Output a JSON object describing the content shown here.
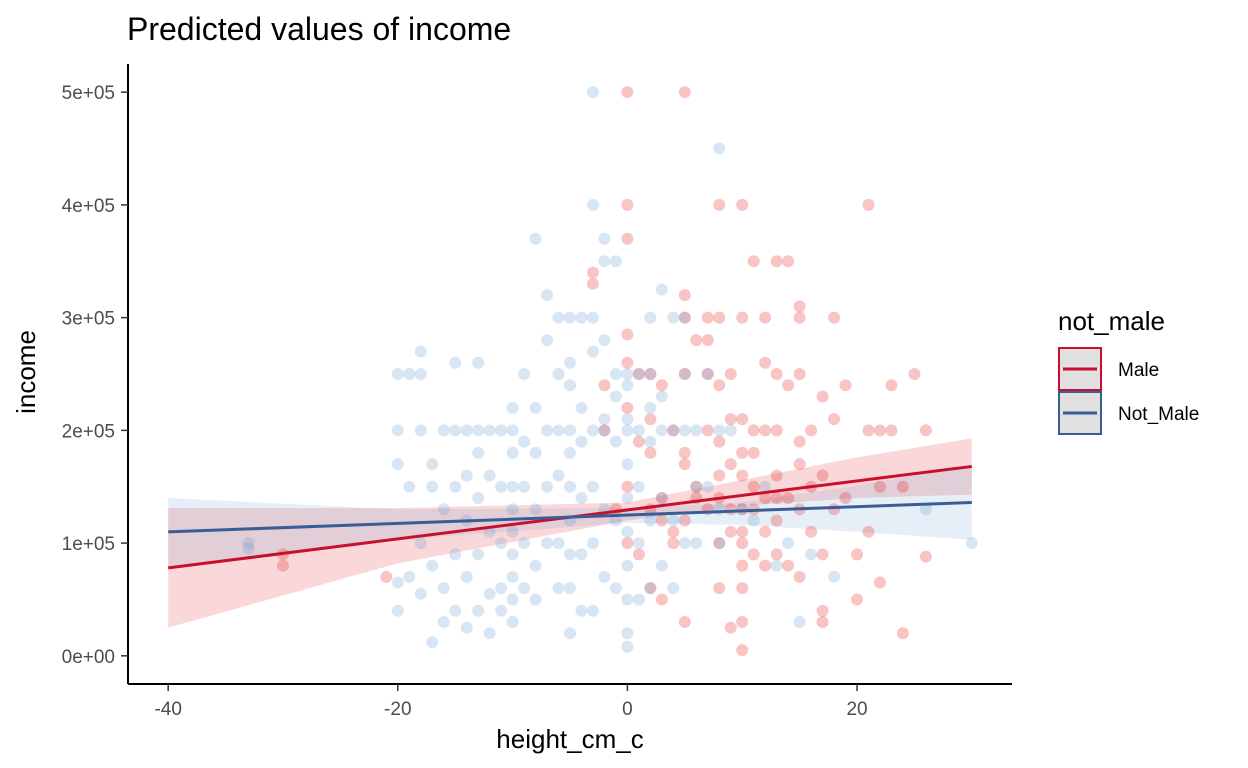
{
  "chart_data": {
    "type": "scatter",
    "title": "Predicted values of income",
    "xlabel": "height_cm_c",
    "ylabel": "income",
    "xlim": [
      -43.5,
      33.5
    ],
    "ylim": [
      -25000,
      525000
    ],
    "x_ticks": [
      -40,
      -20,
      0,
      20
    ],
    "x_tick_labels": [
      "-40",
      "-20",
      "0",
      "20"
    ],
    "y_ticks": [
      0,
      100000,
      200000,
      300000,
      400000,
      500000
    ],
    "y_tick_labels": [
      "0e+00",
      "1e+05",
      "2e+05",
      "3e+05",
      "4e+05",
      "5e+05"
    ],
    "grid": false,
    "legend": {
      "title": "not_male",
      "placement": "right"
    },
    "series": [
      {
        "name": "Male",
        "color": "#e41a1c",
        "line_color": "#c8102e",
        "fit": {
          "x": [
            -40,
            30
          ],
          "y": [
            78000,
            168000
          ]
        },
        "ci_band": {
          "x": [
            -40,
            -20,
            0,
            10,
            20,
            30
          ],
          "lower": [
            25000,
            82000,
            120000,
            133000,
            140000,
            143000
          ],
          "upper": [
            131000,
            131000,
            136000,
            156000,
            176000,
            193000
          ]
        },
        "points": {
          "x": [
            -30,
            -30,
            -21,
            -3,
            -3,
            -2,
            -2,
            0,
            0,
            0,
            0,
            0,
            0,
            0,
            0,
            1,
            1,
            2,
            2,
            2,
            2,
            3,
            3,
            3,
            4,
            4,
            5,
            5,
            5,
            5,
            5,
            5,
            5,
            6,
            6,
            7,
            7,
            7,
            7,
            8,
            8,
            8,
            8,
            8,
            8,
            8,
            9,
            9,
            9,
            9,
            10,
            10,
            10,
            10,
            10,
            10,
            10,
            10,
            10,
            10,
            10,
            10,
            11,
            11,
            11,
            11,
            11,
            12,
            12,
            12,
            12,
            12,
            13,
            13,
            13,
            13,
            13,
            13,
            14,
            14,
            14,
            14,
            15,
            15,
            15,
            15,
            15,
            15,
            16,
            16,
            16,
            17,
            17,
            17,
            17,
            18,
            18,
            18,
            19,
            19,
            20,
            20,
            21,
            21,
            21,
            22,
            22,
            22,
            23,
            23,
            24,
            24,
            25,
            26,
            26,
            5,
            3,
            8,
            9,
            12,
            15,
            17,
            2,
            6,
            -1,
            1,
            7,
            9,
            11,
            13,
            4
          ],
          "y": [
            90000,
            80000,
            70000,
            340000,
            330000,
            240000,
            200000,
            500000,
            400000,
            370000,
            285000,
            260000,
            220000,
            150000,
            100000,
            250000,
            190000,
            250000,
            180000,
            130000,
            60000,
            240000,
            140000,
            50000,
            200000,
            100000,
            500000,
            320000,
            300000,
            250000,
            180000,
            120000,
            30000,
            280000,
            150000,
            300000,
            280000,
            200000,
            130000,
            400000,
            300000,
            240000,
            190000,
            140000,
            100000,
            60000,
            250000,
            170000,
            110000,
            25000,
            400000,
            300000,
            210000,
            180000,
            160000,
            130000,
            110000,
            100000,
            80000,
            60000,
            30000,
            5000,
            350000,
            200000,
            150000,
            130000,
            90000,
            300000,
            260000,
            200000,
            140000,
            80000,
            350000,
            250000,
            200000,
            160000,
            120000,
            90000,
            350000,
            240000,
            140000,
            80000,
            310000,
            300000,
            250000,
            190000,
            130000,
            70000,
            200000,
            150000,
            110000,
            230000,
            160000,
            90000,
            30000,
            300000,
            210000,
            130000,
            240000,
            140000,
            90000,
            50000,
            400000,
            200000,
            110000,
            200000,
            150000,
            65000,
            240000,
            200000,
            150000,
            20000,
            250000,
            200000,
            88000,
            170000,
            120000,
            160000,
            130000,
            110000,
            170000,
            40000,
            210000,
            140000,
            130000,
            90000,
            250000,
            210000,
            180000,
            140000,
            110000
          ]
        }
      },
      {
        "name": "Not_Male",
        "color": "#6a9ed1",
        "line_color": "#3b5d95",
        "fit": {
          "x": [
            -40,
            30
          ],
          "y": [
            110000,
            136000
          ]
        },
        "ci_band": {
          "x": [
            -40,
            -20,
            0,
            10,
            20,
            30
          ],
          "lower": [
            80000,
            103000,
            118000,
            116000,
            110000,
            103000
          ],
          "upper": [
            140000,
            130000,
            131000,
            136000,
            151000,
            169000
          ]
        },
        "points": {
          "x": [
            -33,
            -33,
            -20,
            -20,
            -20,
            -20,
            -20,
            -19,
            -19,
            -19,
            -18,
            -18,
            -18,
            -18,
            -18,
            -17,
            -17,
            -17,
            -17,
            -16,
            -16,
            -16,
            -16,
            -15,
            -15,
            -15,
            -15,
            -15,
            -14,
            -14,
            -14,
            -14,
            -14,
            -13,
            -13,
            -13,
            -13,
            -13,
            -13,
            -12,
            -12,
            -12,
            -12,
            -12,
            -11,
            -11,
            -11,
            -11,
            -11,
            -10,
            -10,
            -10,
            -10,
            -10,
            -10,
            -10,
            -10,
            -10,
            -10,
            -9,
            -9,
            -9,
            -9,
            -9,
            -8,
            -8,
            -8,
            -8,
            -8,
            -8,
            -7,
            -7,
            -7,
            -7,
            -7,
            -6,
            -6,
            -6,
            -6,
            -6,
            -6,
            -5,
            -5,
            -5,
            -5,
            -5,
            -5,
            -5,
            -5,
            -5,
            -5,
            -4,
            -4,
            -4,
            -4,
            -4,
            -4,
            -3,
            -3,
            -3,
            -3,
            -3,
            -3,
            -3,
            -2,
            -2,
            -2,
            -2,
            -2,
            -2,
            -1,
            -1,
            -1,
            -1,
            -1,
            0,
            0,
            0,
            0,
            0,
            0,
            0,
            0,
            0,
            0,
            1,
            1,
            1,
            1,
            1,
            2,
            2,
            2,
            2,
            2,
            3,
            3,
            3,
            3,
            4,
            4,
            4,
            4,
            5,
            5,
            5,
            6,
            6,
            6,
            7,
            7,
            8,
            8,
            8,
            9,
            10,
            11,
            12,
            13,
            14,
            15,
            16,
            18,
            26,
            30,
            -3,
            -2,
            -1,
            0,
            3,
            8,
            5,
            2
          ],
          "y": [
            100000,
            95000,
            250000,
            200000,
            170000,
            65000,
            40000,
            250000,
            150000,
            70000,
            270000,
            250000,
            200000,
            100000,
            55000,
            170000,
            150000,
            80000,
            12000,
            200000,
            130000,
            60000,
            30000,
            260000,
            200000,
            150000,
            90000,
            40000,
            200000,
            160000,
            120000,
            70000,
            25000,
            260000,
            200000,
            180000,
            140000,
            90000,
            40000,
            200000,
            160000,
            110000,
            55000,
            20000,
            200000,
            150000,
            100000,
            60000,
            40000,
            220000,
            200000,
            180000,
            150000,
            130000,
            110000,
            90000,
            70000,
            50000,
            30000,
            250000,
            190000,
            150000,
            100000,
            60000,
            370000,
            220000,
            180000,
            130000,
            80000,
            50000,
            320000,
            280000,
            200000,
            150000,
            100000,
            300000,
            250000,
            200000,
            160000,
            100000,
            60000,
            300000,
            260000,
            240000,
            200000,
            180000,
            150000,
            120000,
            90000,
            60000,
            20000,
            300000,
            220000,
            190000,
            140000,
            90000,
            40000,
            500000,
            400000,
            300000,
            200000,
            150000,
            100000,
            40000,
            370000,
            350000,
            280000,
            200000,
            130000,
            70000,
            350000,
            250000,
            190000,
            120000,
            60000,
            250000,
            240000,
            200000,
            170000,
            140000,
            110000,
            80000,
            50000,
            20000,
            8000,
            250000,
            200000,
            150000,
            100000,
            50000,
            300000,
            250000,
            190000,
            120000,
            60000,
            325000,
            200000,
            140000,
            80000,
            300000,
            200000,
            120000,
            60000,
            300000,
            200000,
            100000,
            200000,
            150000,
            100000,
            250000,
            150000,
            450000,
            200000,
            100000,
            200000,
            130000,
            120000,
            150000,
            80000,
            100000,
            30000,
            90000,
            70000,
            130000,
            100000,
            270000,
            210000,
            230000,
            210000,
            230000,
            130000,
            250000,
            220000
          ]
        }
      }
    ]
  }
}
